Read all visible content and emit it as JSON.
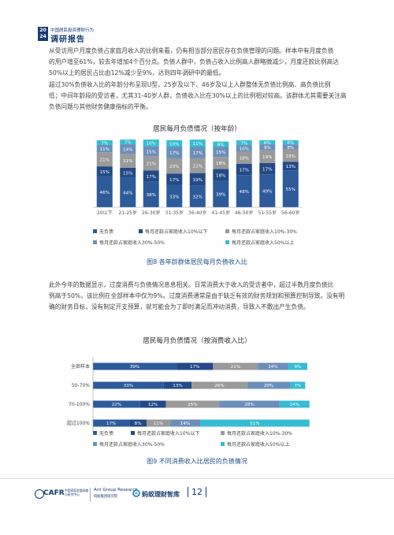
{
  "header": {
    "year_top": "20",
    "year_bottom": "24",
    "small": "中国居民投资理财行为",
    "title": "调研报告"
  },
  "intro_lines": [
    "从受访用户月度负债占家庭月收入的比例来看，仍有相当部分居民存在负债管理的问题。样本中有月度负债",
    "的用户增至61%，较去年增加4个百分点。负债人群中，负债占收入比例高人群略微减少，月度还款比例高达",
    "50%以上的居民占比由12%减少至9%，达到四年调研中的最低。",
    "超过30%负债收入比的年龄分布呈现U型，25岁及以下、46岁及以上人群整体无负债比例高、高负债比例",
    "低；中间年龄段的受访者，尤其31-40岁人群，负债收入比在30%以上的比例相对较高。该群体尤其需要关注高",
    "负债问题与其他财务健康指标的平衡。"
  ],
  "mid_lines": [
    "此外今年的数据显示，过度消费与负债情况息息相关。日常消费大于收入的受访者中，超过半数月度负债比",
    "例高于50%，该比例在全部样本中仅为9%。过度消费通常是由于缺乏有效的财务规划和预算控制导致。没有明",
    "确的财务目标，没有制定开支预算，就可能会为了即时满足而冲动消费，导致入不敷出产生负债。"
  ],
  "chart1": {
    "title": "居民每月负债情况（按年龄）",
    "caption": "图8 各年龄群体居民每月负债收入比"
  },
  "chart2": {
    "title": "居民每月负债情况（按消费收入比）",
    "caption": "图9 不同消费收入比居民的负债情况"
  },
  "legend": [
    "无负债",
    "每月还款占家庭收入10%以下",
    "每月还款占家庭收入10%-30%",
    "每月还款占家庭收入30%-50%",
    "每月还款占家庭收入50%以上"
  ],
  "colors": [
    "#2d5b9a",
    "#234a86",
    "#9a9a9a",
    "#6c8fba",
    "#37bcd1"
  ],
  "chart_data": [
    {
      "type": "bar",
      "stacked": true,
      "orientation": "vertical",
      "title": "居民每月负债情况（按年龄）",
      "categories": [
        "20以下",
        "21-25岁",
        "26-30岁",
        "31-35岁",
        "36-40岁",
        "41-45岁",
        "46-50岁",
        "51-55岁",
        "56-60岁"
      ],
      "ylim": [
        0,
        100
      ],
      "series": [
        {
          "name": "无负债",
          "values": [
            46,
            44,
            38,
            33,
            32,
            39,
            48,
            49,
            55
          ]
        },
        {
          "name": "每月还款占家庭收入10%以下",
          "values": [
            15,
            15,
            17,
            17,
            19,
            18,
            17,
            17,
            13
          ]
        },
        {
          "name": "每月还款占家庭收入10%-30%",
          "values": [
            21,
            21,
            21,
            23,
            22,
            18,
            18,
            19,
            18
          ]
        },
        {
          "name": "每月还款占家庭收入30%-50%",
          "values": [
            11,
            14,
            15,
            17,
            17,
            15,
            10,
            9,
            8
          ]
        },
        {
          "name": "每月还款占家庭收入50%以上",
          "values": [
            7,
            7,
            10,
            10,
            11,
            8,
            7,
            6,
            6
          ]
        }
      ]
    },
    {
      "type": "bar",
      "stacked": true,
      "orientation": "horizontal",
      "title": "居民每月负债情况（按消费收入比）",
      "categories": [
        "全部样本",
        "50-70%",
        "70-100%",
        "超过100%"
      ],
      "xlim": [
        0,
        100
      ],
      "series": [
        {
          "name": "无负债",
          "values": [
            39,
            33,
            22,
            17
          ]
        },
        {
          "name": "每月还款占家庭收入10%以下",
          "values": [
            17,
            13,
            12,
            8
          ]
        },
        {
          "name": "每月还款占家庭收入10%-30%",
          "values": [
            21,
            26,
            25,
            11
          ]
        },
        {
          "name": "每月还款占家庭收入30%-50%",
          "values": [
            14,
            20,
            28,
            14
          ]
        },
        {
          "name": "每月还款占家庭收入50%以上",
          "values": [
            9,
            7,
            14,
            51
          ]
        }
      ]
    }
  ],
  "footer": {
    "cafr": "CAFR",
    "cafr_sub1": "中国家庭金融调查",
    "cafr_sub2": "与研究中心",
    "ant": "Ant Group Research",
    "ant_sub": "蚂蚁集团研究院",
    "fortune": "蚂蚁理财智库",
    "page": "12"
  }
}
